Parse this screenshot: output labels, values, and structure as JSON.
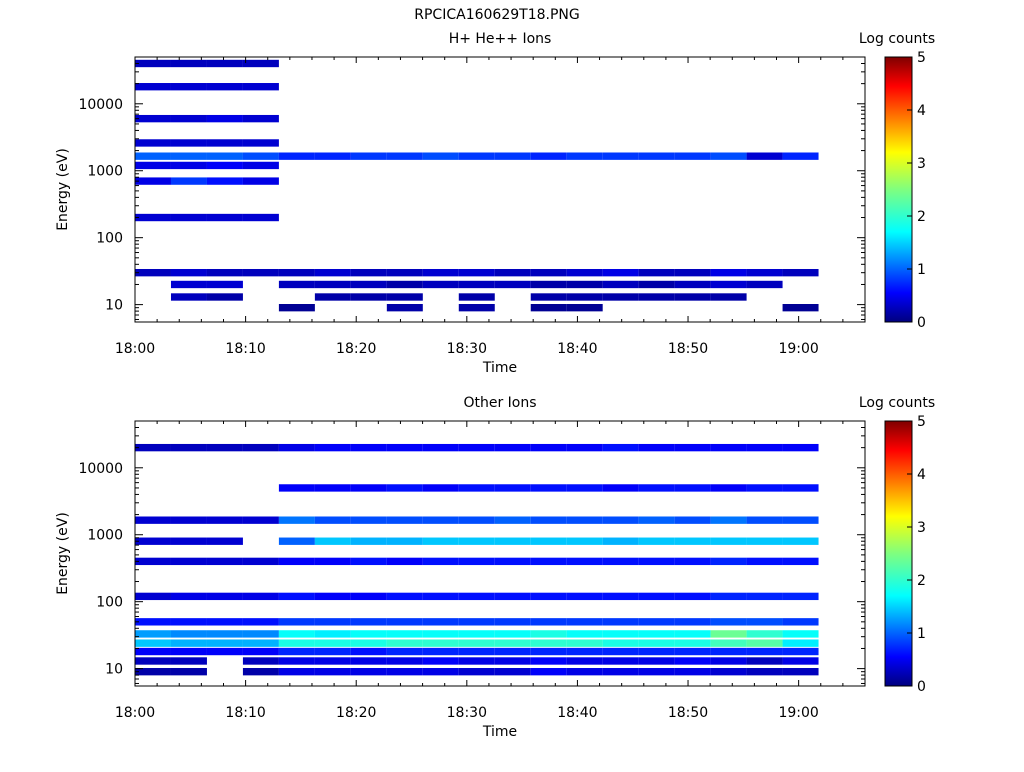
{
  "figure_title": "RPCICA160629T18.PNG",
  "chart_data": [
    {
      "type": "heatmap",
      "title": "H+ He++ Ions",
      "xlabel": "Time",
      "ylabel": "Energy (eV)",
      "y_scale": "log",
      "ylim": [
        5.5,
        50000
      ],
      "x_range_minutes": [
        0,
        66
      ],
      "x_ticks": [
        {
          "m": 0,
          "label": "18:00"
        },
        {
          "m": 10,
          "label": "18:10"
        },
        {
          "m": 20,
          "label": "18:20"
        },
        {
          "m": 30,
          "label": "18:30"
        },
        {
          "m": 40,
          "label": "18:40"
        },
        {
          "m": 50,
          "label": "18:50"
        },
        {
          "m": 60,
          "label": "19:00"
        }
      ],
      "y_ticks": [
        {
          "v": 10,
          "label": "10"
        },
        {
          "v": 100,
          "label": "100"
        },
        {
          "v": 1000,
          "label": "1000"
        },
        {
          "v": 10000,
          "label": "10000"
        }
      ],
      "colorbar": {
        "label": "Log counts",
        "range": [
          0,
          5
        ],
        "ticks": [
          "0",
          "1",
          "2",
          "3",
          "4",
          "5"
        ]
      },
      "data_start_minute": 0,
      "data_end_minute": 61.8,
      "time_bins": 19,
      "energy_bands": [
        {
          "e": 40000,
          "levels": [
            0.3,
            0.3,
            0.3,
            0.3,
            null,
            null,
            null,
            null,
            null,
            null,
            null,
            null,
            null,
            null,
            null,
            null,
            null,
            null,
            null
          ]
        },
        {
          "e": 18000,
          "levels": [
            0.4,
            0.4,
            0.4,
            0.4,
            null,
            null,
            null,
            null,
            null,
            null,
            null,
            null,
            null,
            null,
            null,
            null,
            null,
            null,
            null
          ]
        },
        {
          "e": 6000,
          "levels": [
            0.4,
            0.4,
            0.5,
            0.4,
            null,
            null,
            null,
            null,
            null,
            null,
            null,
            null,
            null,
            null,
            null,
            null,
            null,
            null,
            null
          ]
        },
        {
          "e": 2600,
          "levels": [
            0.4,
            0.4,
            0.4,
            0.4,
            null,
            null,
            null,
            null,
            null,
            null,
            null,
            null,
            null,
            null,
            null,
            null,
            null,
            null,
            null
          ]
        },
        {
          "e": 1650,
          "levels": [
            1.1,
            1.1,
            1.1,
            1.0,
            0.8,
            0.8,
            0.9,
            0.9,
            1.0,
            0.9,
            0.9,
            0.8,
            0.9,
            0.9,
            0.9,
            0.9,
            1.0,
            0.4,
            0.8
          ]
        },
        {
          "e": 1200,
          "levels": [
            0.5,
            0.5,
            0.6,
            0.5,
            null,
            null,
            null,
            null,
            null,
            null,
            null,
            null,
            null,
            null,
            null,
            null,
            null,
            null,
            null
          ]
        },
        {
          "e": 700,
          "levels": [
            0.5,
            0.9,
            0.7,
            0.5,
            null,
            null,
            null,
            null,
            null,
            null,
            null,
            null,
            null,
            null,
            null,
            null,
            null,
            null,
            null
          ]
        },
        {
          "e": 200,
          "levels": [
            0.4,
            0.4,
            0.4,
            0.4,
            null,
            null,
            null,
            null,
            null,
            null,
            null,
            null,
            null,
            null,
            null,
            null,
            null,
            null,
            null
          ]
        },
        {
          "e": 30,
          "levels": [
            0.3,
            0.4,
            0.3,
            0.3,
            0.3,
            0.4,
            0.3,
            0.3,
            0.4,
            0.4,
            0.3,
            0.3,
            0.4,
            0.5,
            0.3,
            0.3,
            0.5,
            0.4,
            0.3
          ]
        },
        {
          "e": 20,
          "levels": [
            null,
            0.4,
            0.4,
            null,
            0.3,
            0.3,
            0.3,
            0.2,
            0.3,
            0.3,
            0.3,
            0.2,
            0.2,
            0.3,
            0.2,
            0.3,
            0.4,
            0.3,
            null
          ]
        },
        {
          "e": 13,
          "levels": [
            null,
            0.3,
            0.2,
            null,
            null,
            0.2,
            0.2,
            0.2,
            null,
            0.2,
            null,
            0.2,
            0.2,
            0.2,
            0.2,
            0.2,
            0.2,
            null,
            null
          ]
        },
        {
          "e": 9,
          "levels": [
            null,
            null,
            null,
            null,
            0.1,
            null,
            null,
            0.2,
            null,
            0.2,
            null,
            0.1,
            0.1,
            null,
            null,
            null,
            null,
            null,
            0.1
          ]
        }
      ]
    },
    {
      "type": "heatmap",
      "title": "Other Ions",
      "xlabel": "Time",
      "ylabel": "Energy (eV)",
      "y_scale": "log",
      "ylim": [
        5.5,
        50000
      ],
      "x_range_minutes": [
        0,
        66
      ],
      "x_ticks": [
        {
          "m": 0,
          "label": "18:00"
        },
        {
          "m": 10,
          "label": "18:10"
        },
        {
          "m": 20,
          "label": "18:20"
        },
        {
          "m": 30,
          "label": "18:30"
        },
        {
          "m": 40,
          "label": "18:40"
        },
        {
          "m": 50,
          "label": "18:50"
        },
        {
          "m": 60,
          "label": "19:00"
        }
      ],
      "y_ticks": [
        {
          "v": 10,
          "label": "10"
        },
        {
          "v": 100,
          "label": "100"
        },
        {
          "v": 1000,
          "label": "1000"
        },
        {
          "v": 10000,
          "label": "10000"
        }
      ],
      "colorbar": {
        "label": "Log counts",
        "range": [
          0,
          5
        ],
        "ticks": [
          "0",
          "1",
          "2",
          "3",
          "4",
          "5"
        ]
      },
      "data_start_minute": 0,
      "data_end_minute": 61.8,
      "time_bins": 19,
      "energy_bands": [
        {
          "e": 20000,
          "levels": [
            0.3,
            0.3,
            0.3,
            0.3,
            0.5,
            0.6,
            0.6,
            0.6,
            0.6,
            0.6,
            0.6,
            0.6,
            0.6,
            0.7,
            0.6,
            0.6,
            0.6,
            0.6,
            0.6
          ]
        },
        {
          "e": 5000,
          "levels": [
            null,
            null,
            null,
            null,
            0.6,
            0.6,
            0.6,
            0.7,
            0.6,
            0.7,
            0.7,
            0.7,
            0.7,
            0.6,
            0.7,
            0.7,
            0.6,
            0.7,
            0.7
          ]
        },
        {
          "e": 1650,
          "levels": [
            0.4,
            0.4,
            0.4,
            0.4,
            1.2,
            1.0,
            1.0,
            1.0,
            1.0,
            1.0,
            1.1,
            1.0,
            1.0,
            1.0,
            1.1,
            1.0,
            1.2,
            1.0,
            1.0
          ]
        },
        {
          "e": 800,
          "levels": [
            0.4,
            0.4,
            0.4,
            null,
            1.1,
            1.6,
            1.5,
            1.5,
            1.6,
            1.6,
            1.6,
            1.6,
            1.6,
            1.5,
            1.6,
            1.6,
            1.6,
            1.6,
            1.6
          ]
        },
        {
          "e": 400,
          "levels": [
            0.4,
            0.4,
            0.4,
            0.4,
            0.6,
            0.6,
            0.7,
            0.6,
            0.7,
            0.7,
            0.7,
            0.7,
            0.7,
            0.7,
            0.7,
            0.7,
            0.8,
            0.7,
            0.7
          ]
        },
        {
          "e": 120,
          "levels": [
            0.4,
            0.5,
            0.5,
            0.5,
            0.7,
            0.6,
            0.6,
            0.7,
            0.7,
            0.7,
            0.7,
            0.7,
            0.7,
            0.7,
            0.7,
            0.7,
            0.8,
            0.8,
            0.8
          ]
        },
        {
          "e": 50,
          "levels": [
            0.7,
            0.7,
            0.7,
            0.7,
            0.9,
            0.9,
            0.9,
            0.9,
            0.9,
            0.9,
            0.9,
            0.9,
            0.9,
            0.9,
            0.9,
            0.9,
            1.0,
            1.0,
            0.9
          ]
        },
        {
          "e": 33,
          "levels": [
            1.4,
            1.3,
            1.3,
            1.3,
            1.9,
            1.8,
            1.9,
            1.9,
            1.9,
            1.9,
            1.9,
            2.0,
            1.9,
            1.9,
            1.9,
            1.9,
            2.4,
            2.1,
            1.9
          ]
        },
        {
          "e": 24,
          "levels": [
            1.6,
            1.5,
            1.5,
            1.5,
            2.0,
            2.0,
            2.0,
            2.1,
            2.1,
            2.1,
            2.1,
            2.1,
            2.1,
            2.0,
            2.0,
            2.0,
            2.2,
            2.3,
            1.8
          ]
        },
        {
          "e": 18,
          "levels": [
            0.6,
            0.6,
            0.6,
            0.6,
            0.8,
            0.8,
            0.7,
            0.8,
            0.8,
            0.8,
            0.8,
            0.8,
            0.8,
            0.8,
            0.8,
            0.8,
            0.8,
            0.8,
            0.8
          ]
        },
        {
          "e": 13,
          "levels": [
            0.3,
            0.3,
            null,
            0.3,
            0.5,
            0.5,
            0.5,
            0.5,
            0.6,
            0.5,
            0.5,
            0.6,
            0.5,
            0.5,
            0.5,
            0.6,
            0.5,
            0.3,
            0.5
          ]
        },
        {
          "e": 9,
          "levels": [
            0.2,
            0.2,
            null,
            0.2,
            0.5,
            0.5,
            0.5,
            0.5,
            0.5,
            0.4,
            0.4,
            0.6,
            0.5,
            0.5,
            0.5,
            0.5,
            0.4,
            0.3,
            0.3
          ]
        }
      ]
    }
  ]
}
